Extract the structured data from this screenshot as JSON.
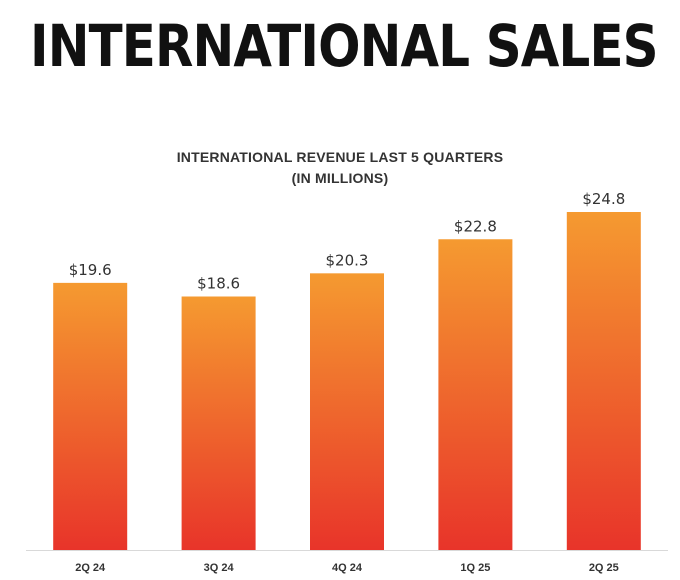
{
  "page": {
    "headline": "INTERNATIONAL SALES"
  },
  "chart_data": {
    "type": "bar",
    "title": "INTERNATIONAL REVENUE LAST 5 QUARTERS",
    "subtitle": "(IN MILLIONS)",
    "categories": [
      "2Q 24",
      "3Q 24",
      "4Q 24",
      "1Q 25",
      "2Q 25"
    ],
    "values": [
      19.6,
      18.6,
      20.3,
      22.8,
      24.8
    ],
    "data_labels": [
      "$19.6",
      "$18.6",
      "$20.3",
      "$22.8",
      "$24.8"
    ],
    "xlabel": "",
    "ylabel": "",
    "ylim": [
      0,
      25
    ],
    "grid": false,
    "legend": "none",
    "colors": {
      "bar_top": "#f59a30",
      "bar_bottom": "#e8342a",
      "axis": "#d9d9d9"
    }
  }
}
